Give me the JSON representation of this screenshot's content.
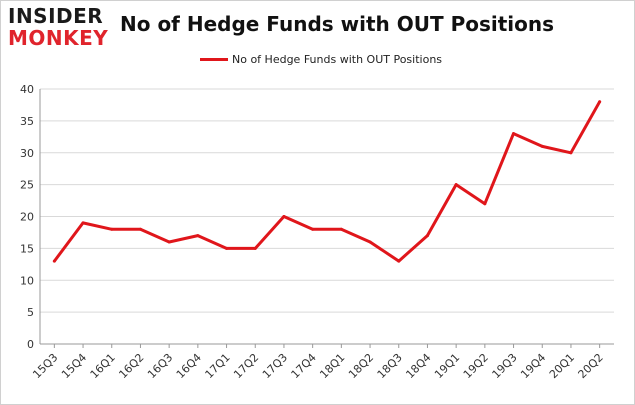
{
  "logo": {
    "line1": "INSIDER",
    "line2": "MONKEY"
  },
  "chart_data": {
    "type": "line",
    "title": "No of Hedge Funds with OUT Positions",
    "xlabel": "",
    "ylabel": "",
    "categories": [
      "15Q3",
      "15Q4",
      "16Q1",
      "16Q2",
      "16Q3",
      "16Q4",
      "17Q1",
      "17Q2",
      "17Q3",
      "17Q4",
      "18Q1",
      "18Q2",
      "18Q3",
      "18Q4",
      "19Q1",
      "19Q2",
      "19Q3",
      "19Q4",
      "20Q1",
      "20Q2"
    ],
    "series": [
      {
        "name": "No of Hedge Funds with OUT Positions",
        "color": "#e0161b",
        "values": [
          13,
          19,
          18,
          18,
          16,
          17,
          15,
          15,
          20,
          18,
          18,
          16,
          13,
          17,
          25,
          22,
          33,
          31,
          30,
          38
        ]
      }
    ],
    "ylim": [
      0,
      40
    ],
    "yticks": [
      0,
      5,
      10,
      15,
      20,
      25,
      30,
      35,
      40
    ],
    "grid": true,
    "legend_position": "top-center"
  }
}
